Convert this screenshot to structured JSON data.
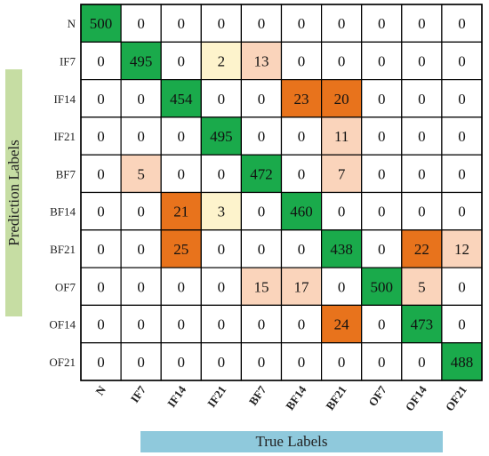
{
  "chart_data": {
    "type": "heatmap",
    "xlabel": "True Labels",
    "ylabel": "Prediction Labels",
    "x_categories": [
      "N",
      "IF7",
      "IF14",
      "IF21",
      "BF7",
      "BF14",
      "BF21",
      "OF7",
      "OF14",
      "OF21"
    ],
    "y_categories": [
      "N",
      "IF7",
      "IF14",
      "IF21",
      "BF7",
      "BF14",
      "BF21",
      "OF7",
      "OF14",
      "OF21"
    ],
    "values": [
      [
        500,
        0,
        0,
        0,
        0,
        0,
        0,
        0,
        0,
        0
      ],
      [
        0,
        495,
        0,
        2,
        13,
        0,
        0,
        0,
        0,
        0
      ],
      [
        0,
        0,
        454,
        0,
        0,
        23,
        20,
        0,
        0,
        0
      ],
      [
        0,
        0,
        0,
        495,
        0,
        0,
        11,
        0,
        0,
        0
      ],
      [
        0,
        5,
        0,
        0,
        472,
        0,
        7,
        0,
        0,
        0
      ],
      [
        0,
        0,
        21,
        3,
        0,
        460,
        0,
        0,
        0,
        0
      ],
      [
        0,
        0,
        25,
        0,
        0,
        0,
        438,
        0,
        22,
        12
      ],
      [
        0,
        0,
        0,
        0,
        15,
        17,
        0,
        500,
        5,
        0
      ],
      [
        0,
        0,
        0,
        0,
        0,
        0,
        24,
        0,
        473,
        0
      ],
      [
        0,
        0,
        0,
        0,
        0,
        0,
        0,
        0,
        0,
        488
      ]
    ],
    "colors": {
      "diagonal": "#1aaa4b",
      "high": "#e8731c",
      "medium": "#fad4bb",
      "low": "#fdf3cc",
      "zero": "#ffffff",
      "grid": "#000000",
      "ylabel_box": "#c6dda3",
      "xlabel_box": "#8fc9dc"
    },
    "grid": true
  }
}
